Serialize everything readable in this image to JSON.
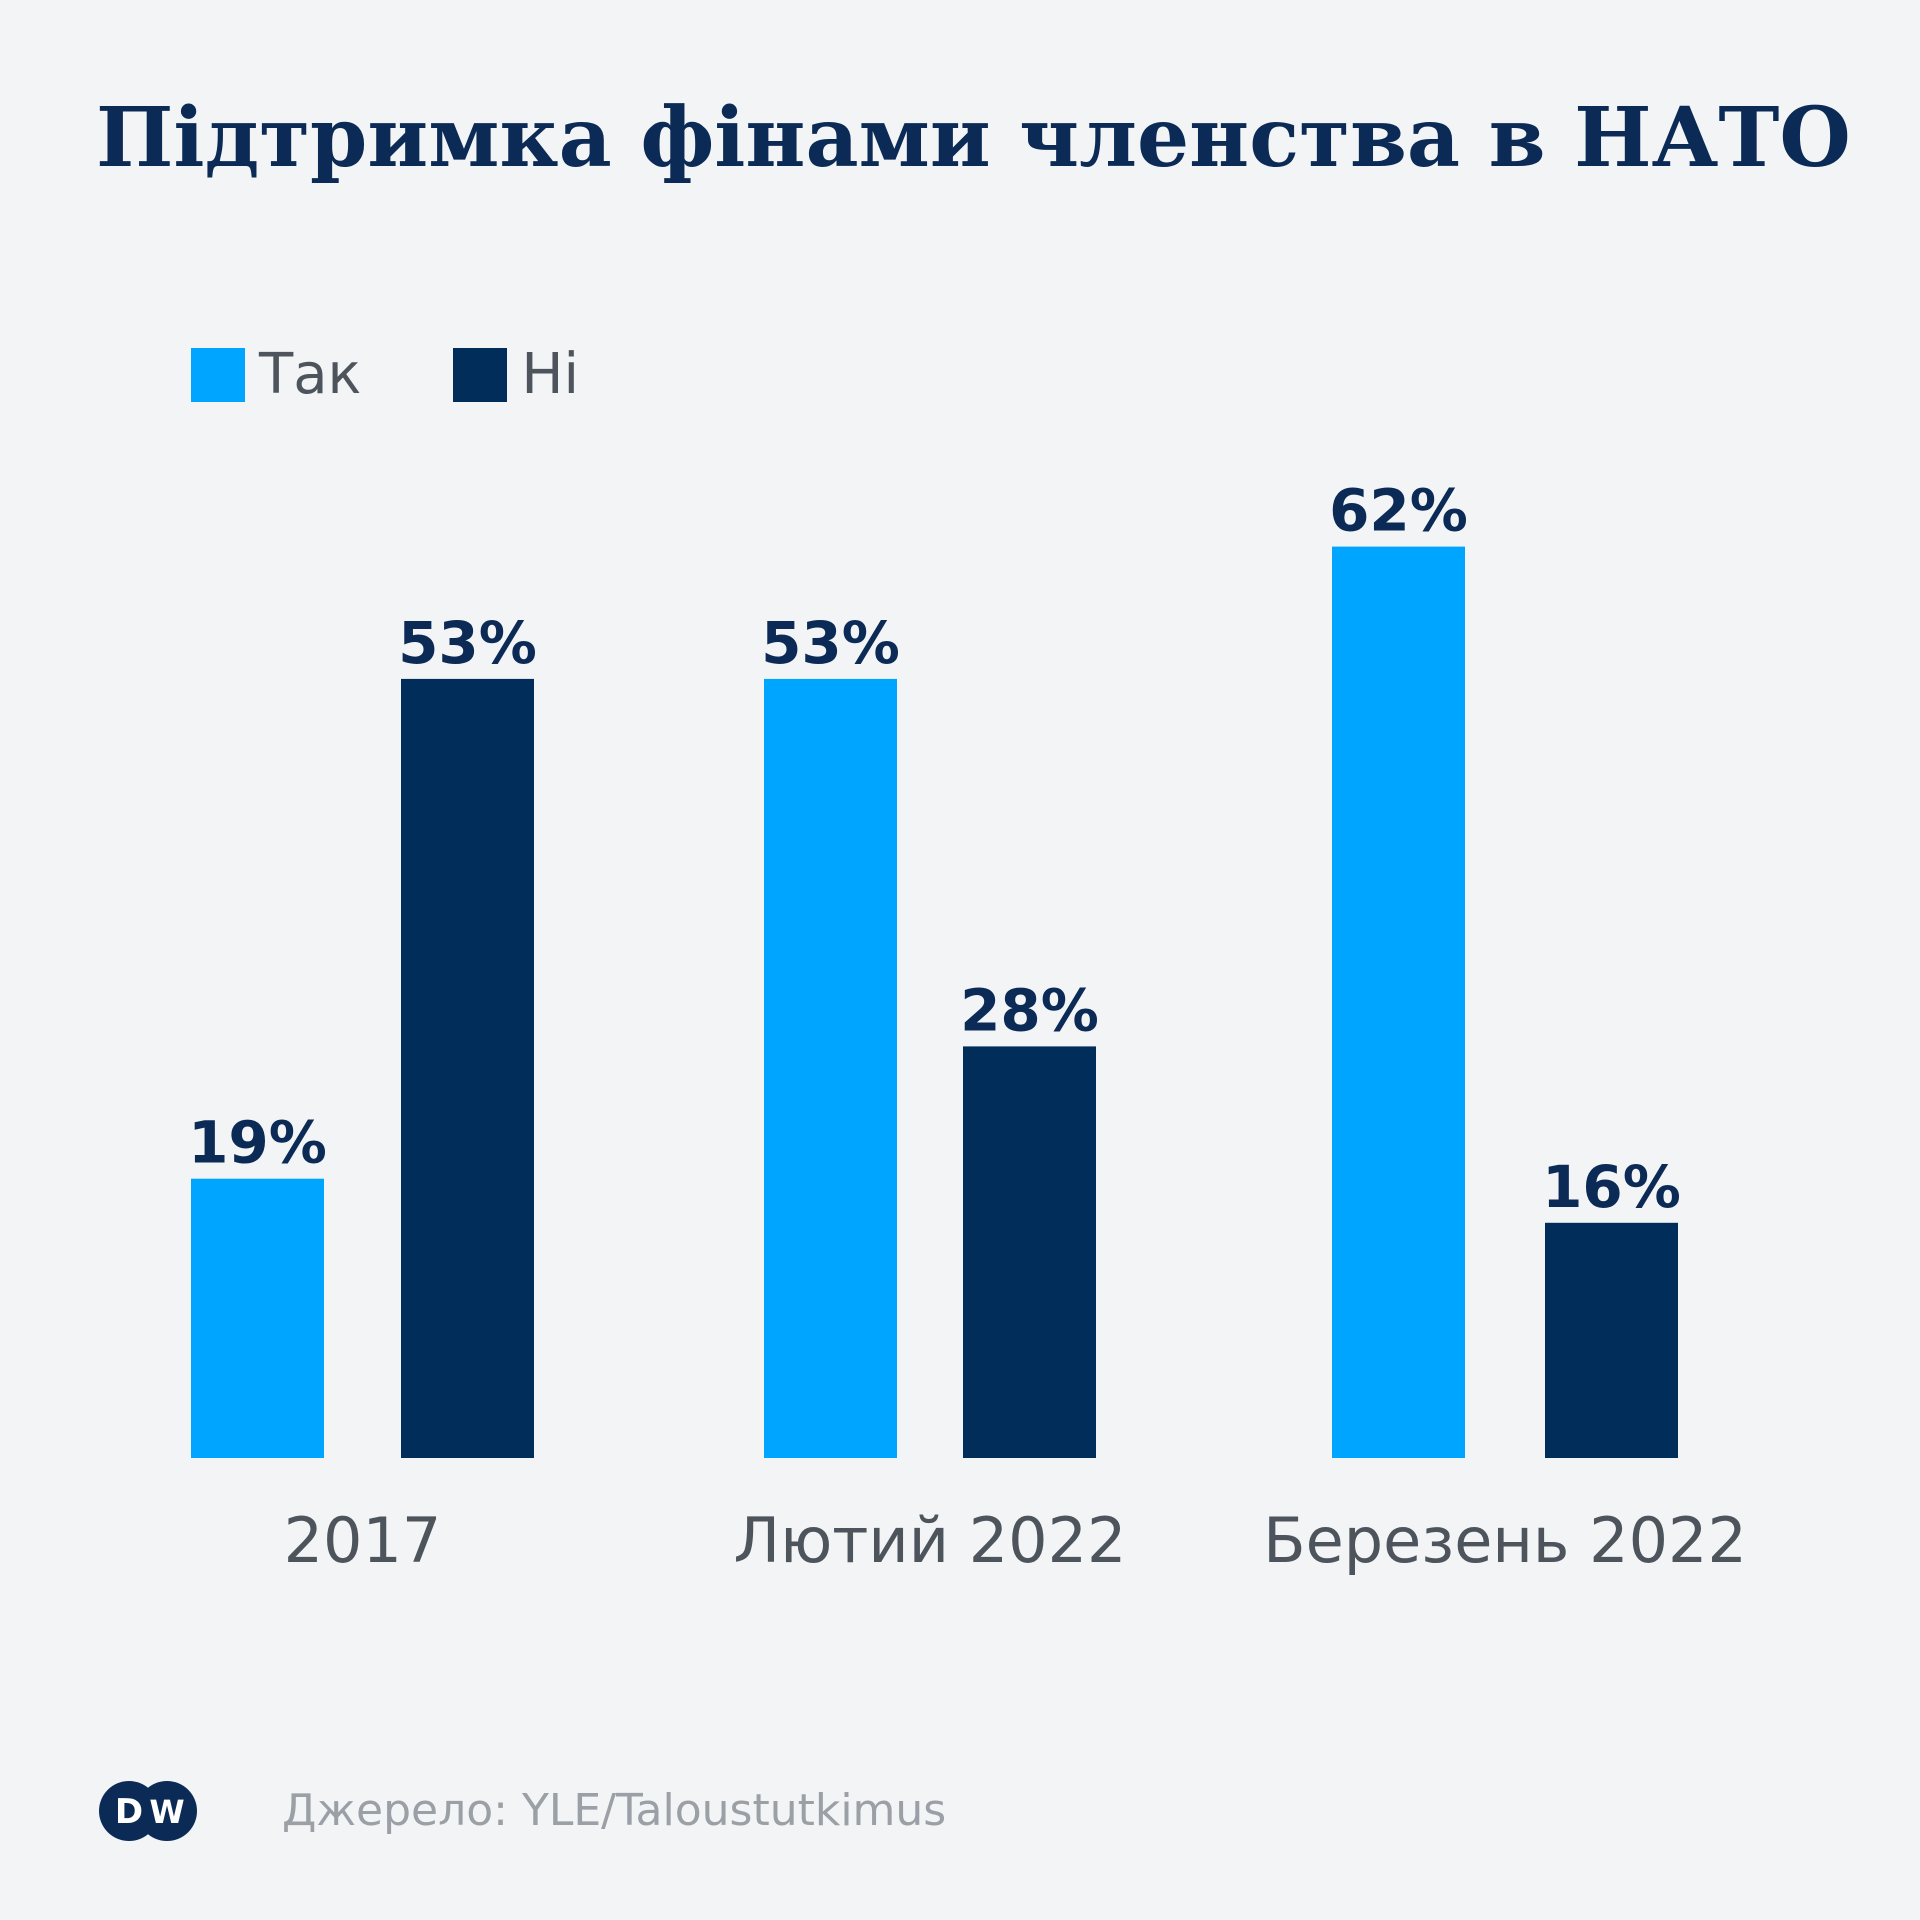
{
  "title": "Підтримка фінами членства в НАТО",
  "legend": [
    {
      "label": "Так",
      "color": "#00a5ff"
    },
    {
      "label": "Ні",
      "color": "#002d5a"
    }
  ],
  "chart_data": {
    "type": "bar",
    "title": "Підтримка фінами членства в НАТО",
    "categories": [
      "2017",
      "Лютий 2022",
      "Березень 2022"
    ],
    "series": [
      {
        "name": "Так",
        "color": "#00a5ff",
        "values": [
          19,
          53,
          62
        ],
        "labels": [
          "19%",
          "53%",
          "62%"
        ]
      },
      {
        "name": "Ні",
        "color": "#002d5a",
        "values": [
          53,
          28,
          16
        ],
        "labels": [
          "53%",
          "28%",
          "16%"
        ]
      }
    ],
    "unit": "%",
    "xlabel": "",
    "ylabel": "",
    "grid": false,
    "legend_position": "top-left"
  },
  "footer": {
    "source": "Джерело: YLE/Taloustutkimus",
    "logo_text": "DW"
  }
}
